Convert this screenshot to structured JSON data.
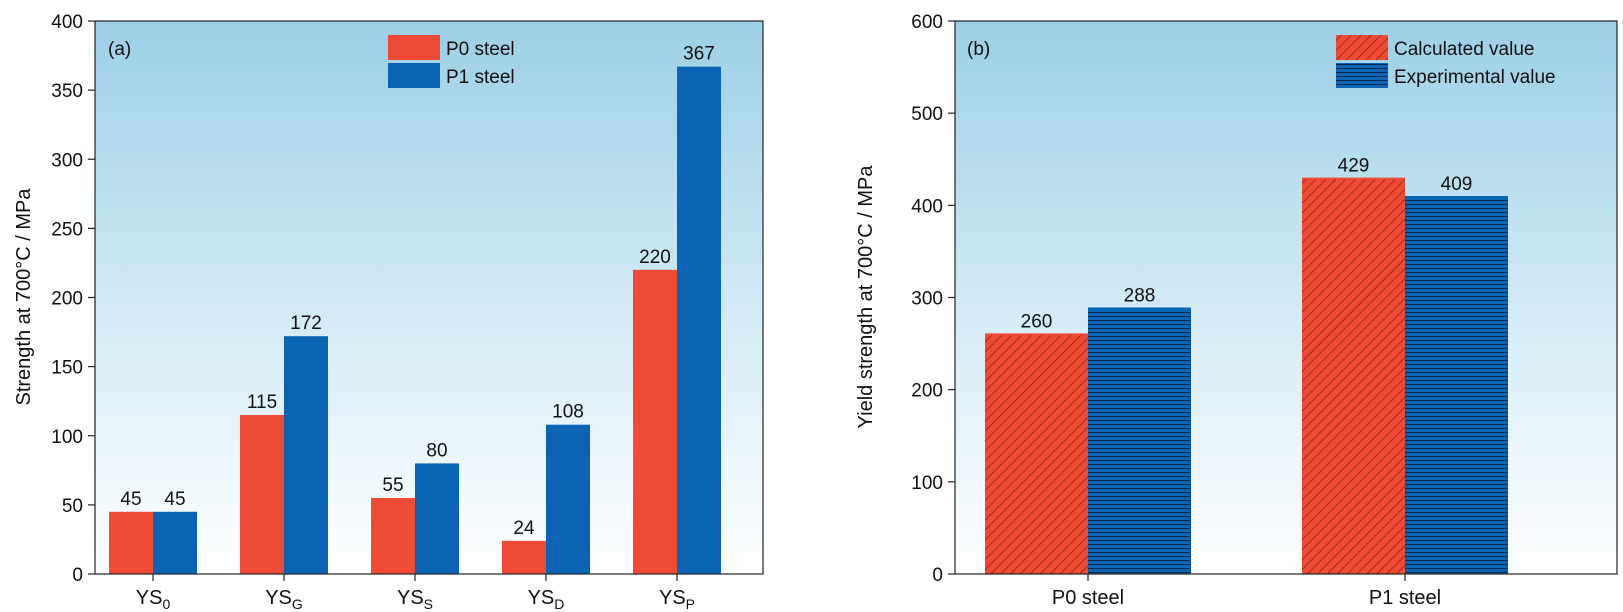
{
  "chart_data": [
    {
      "type": "bar",
      "panel_label": "(a)",
      "ylabel": "Strength at 700°C / MPa",
      "xlabel": "",
      "ylim": [
        0,
        400
      ],
      "yticks": [
        0,
        50,
        100,
        150,
        200,
        250,
        300,
        350,
        400
      ],
      "categories": [
        {
          "base": "YS",
          "sub": "0"
        },
        {
          "base": "YS",
          "sub": "G"
        },
        {
          "base": "YS",
          "sub": "S"
        },
        {
          "base": "YS",
          "sub": "D"
        },
        {
          "base": "YS",
          "sub": "P"
        }
      ],
      "series": [
        {
          "name": "P0 steel",
          "values": [
            45,
            115,
            55,
            24,
            220
          ],
          "color": "#ef4a34",
          "pattern": "solid"
        },
        {
          "name": "P1 steel",
          "values": [
            45,
            172,
            80,
            108,
            367
          ],
          "color": "#0b63b3",
          "pattern": "solid"
        }
      ],
      "legend": "top-center",
      "background": "gradient light-blue to white",
      "grid": false
    },
    {
      "type": "bar",
      "panel_label": "(b)",
      "ylabel": "Yield strength at 700°C / MPa",
      "xlabel": "",
      "ylim": [
        0,
        600
      ],
      "yticks": [
        0,
        100,
        200,
        300,
        400,
        500,
        600
      ],
      "categories": [
        {
          "base": "P0 steel",
          "sub": ""
        },
        {
          "base": "P1 steel",
          "sub": ""
        }
      ],
      "series": [
        {
          "name": "Calculated value",
          "values": [
            260,
            429
          ],
          "color": "#ef4a34",
          "pattern": "diagonal-hatch"
        },
        {
          "name": "Experimental value",
          "values": [
            288,
            409
          ],
          "color": "#0b63b3",
          "pattern": "horizontal-hatch"
        }
      ],
      "legend": "top-right",
      "background": "gradient light-blue to white",
      "grid": false
    }
  ]
}
